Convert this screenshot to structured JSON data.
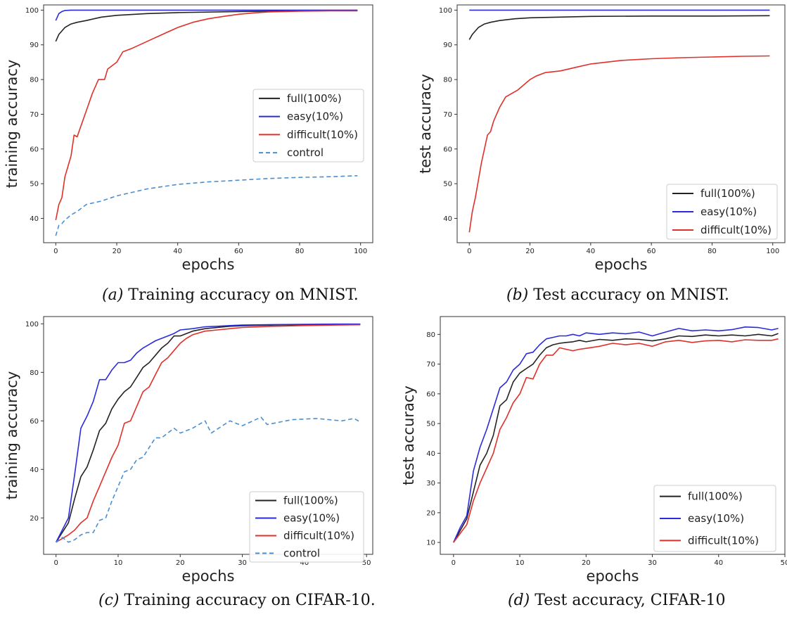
{
  "figure": {
    "subplots": [
      {
        "caption_letter": "(a)",
        "caption_text": "Training accuracy on MNIST."
      },
      {
        "caption_letter": "(b)",
        "caption_text": "Test accuracy on MNIST."
      },
      {
        "caption_letter": "(c)",
        "caption_text": "Training accuracy on CIFAR-10."
      },
      {
        "caption_letter": "(d)",
        "caption_text": "Test accuracy, CIFAR-10"
      }
    ]
  },
  "chart_data": [
    {
      "type": "line",
      "xlabel": "epochs",
      "ylabel": "training accuracy",
      "xlim": [
        -4,
        104
      ],
      "ylim": [
        33,
        101.5
      ],
      "xticks": [
        0,
        20,
        40,
        60,
        80,
        100
      ],
      "yticks": [
        40,
        50,
        60,
        70,
        80,
        90,
        100
      ],
      "grid": false,
      "legend_position": "center-right",
      "series": [
        {
          "name": "full(100%)",
          "color": "#222222",
          "dash": "solid",
          "x": [
            0,
            1,
            2,
            3,
            5,
            7,
            10,
            15,
            20,
            30,
            40,
            60,
            80,
            99
          ],
          "y": [
            91,
            93,
            94,
            95,
            96,
            96.5,
            97,
            98,
            98.5,
            99,
            99.3,
            99.6,
            99.8,
            99.9
          ]
        },
        {
          "name": "easy(10%)",
          "color": "#2b2bdb",
          "dash": "solid",
          "x": [
            0,
            1,
            2,
            3,
            5,
            10,
            99
          ],
          "y": [
            97,
            99,
            99.6,
            99.9,
            100,
            100,
            100
          ]
        },
        {
          "name": "difficult(10%)",
          "color": "#e0302a",
          "dash": "solid",
          "x": [
            0,
            1,
            2,
            3,
            4,
            5,
            6,
            7,
            8,
            10,
            12,
            14,
            16,
            17,
            20,
            22,
            25,
            30,
            35,
            40,
            45,
            50,
            55,
            60,
            65,
            70,
            80,
            90,
            99
          ],
          "y": [
            39.5,
            44,
            46,
            52,
            55,
            58,
            64,
            63.5,
            66,
            71,
            76,
            80,
            80,
            83,
            85,
            88,
            89,
            91,
            93,
            95,
            96.5,
            97.5,
            98.2,
            98.8,
            99.2,
            99.5,
            99.7,
            99.8,
            99.8
          ]
        },
        {
          "name": "control",
          "color": "#4b8fd0",
          "dash": "dashed",
          "x": [
            0,
            1,
            2,
            3,
            5,
            7,
            10,
            15,
            20,
            25,
            30,
            40,
            50,
            60,
            70,
            80,
            90,
            99
          ],
          "y": [
            35,
            38,
            38.5,
            39.5,
            41,
            42,
            44,
            45,
            46.5,
            47.5,
            48.5,
            49.8,
            50.5,
            51,
            51.5,
            51.8,
            52,
            52.3
          ]
        }
      ]
    },
    {
      "type": "line",
      "xlabel": "epochs",
      "ylabel": "test accuracy",
      "xlim": [
        -4,
        104
      ],
      "ylim": [
        33,
        101.5
      ],
      "xticks": [
        0,
        20,
        40,
        60,
        80,
        100
      ],
      "yticks": [
        40,
        50,
        60,
        70,
        80,
        90,
        100
      ],
      "grid": false,
      "legend_position": "bottom-right",
      "series": [
        {
          "name": "full(100%)",
          "color": "#222222",
          "dash": "solid",
          "x": [
            0,
            1,
            2,
            3,
            5,
            7,
            10,
            15,
            20,
            30,
            40,
            60,
            80,
            99
          ],
          "y": [
            91.5,
            93,
            94,
            95,
            96,
            96.5,
            97,
            97.5,
            97.8,
            98,
            98.2,
            98.3,
            98.3,
            98.4
          ]
        },
        {
          "name": "easy(10%)",
          "color": "#2b2bdb",
          "dash": "solid",
          "x": [
            0,
            99
          ],
          "y": [
            100,
            100
          ]
        },
        {
          "name": "difficult(10%)",
          "color": "#e0302a",
          "dash": "solid",
          "x": [
            0,
            1,
            2,
            3,
            4,
            5,
            6,
            7,
            8,
            10,
            12,
            14,
            16,
            18,
            20,
            22,
            25,
            30,
            35,
            40,
            45,
            50,
            60,
            70,
            80,
            90,
            99
          ],
          "y": [
            36,
            42,
            46,
            51,
            56,
            60,
            64,
            65,
            68,
            72,
            75,
            76,
            77,
            78.5,
            80,
            81,
            82,
            82.5,
            83.5,
            84.5,
            85,
            85.5,
            86,
            86.3,
            86.5,
            86.7,
            86.8
          ]
        }
      ]
    },
    {
      "type": "line",
      "xlabel": "epochs",
      "ylabel": "training accuracy",
      "xlim": [
        -2,
        51
      ],
      "ylim": [
        5,
        103
      ],
      "xticks": [
        0,
        10,
        20,
        30,
        40,
        50
      ],
      "yticks": [
        20,
        40,
        60,
        80,
        100
      ],
      "grid": false,
      "legend_position": "bottom-right",
      "series": [
        {
          "name": "full(100%)",
          "color": "#222222",
          "dash": "solid",
          "x": [
            0,
            2,
            3,
            4,
            5,
            6,
            7,
            8,
            9,
            10,
            11,
            12,
            13,
            14,
            15,
            16,
            17,
            18,
            19,
            20,
            22,
            24,
            26,
            28,
            30,
            35,
            40,
            45,
            49
          ],
          "y": [
            10,
            18,
            28,
            37,
            41,
            48,
            56,
            59,
            65,
            69,
            72,
            74,
            78,
            82,
            84,
            87,
            90,
            92,
            95,
            95,
            97,
            98,
            98.5,
            99,
            99.2,
            99.5,
            99.7,
            99.8,
            99.8
          ]
        },
        {
          "name": "easy(10%)",
          "color": "#2b2bdb",
          "dash": "solid",
          "x": [
            0,
            1,
            2,
            3,
            4,
            5,
            6,
            7,
            8,
            9,
            10,
            11,
            12,
            13,
            14,
            15,
            16,
            17,
            18,
            19,
            20,
            22,
            24,
            26,
            28,
            30,
            35,
            40,
            45,
            49
          ],
          "y": [
            10,
            15,
            20,
            38,
            57,
            62,
            68,
            77,
            77,
            81,
            84,
            84,
            85,
            88,
            90,
            91.5,
            93,
            94,
            95,
            96,
            97.5,
            98,
            98.8,
            99,
            99.3,
            99.5,
            99.7,
            99.8,
            99.9,
            99.9
          ]
        },
        {
          "name": "difficult(10%)",
          "color": "#e0302a",
          "dash": "solid",
          "x": [
            0,
            2,
            3,
            4,
            5,
            6,
            7,
            8,
            9,
            10,
            11,
            12,
            13,
            14,
            15,
            16,
            17,
            18,
            19,
            20,
            21,
            22,
            24,
            26,
            28,
            30,
            35,
            40,
            45,
            49
          ],
          "y": [
            10,
            13,
            15,
            18,
            20,
            27,
            33,
            39,
            45,
            50,
            59,
            60,
            66,
            72,
            74,
            79,
            84,
            86,
            89,
            92,
            94,
            95.5,
            97,
            97.5,
            98,
            98.5,
            99,
            99.3,
            99.5,
            99.6
          ]
        },
        {
          "name": "control",
          "color": "#4b8fd0",
          "dash": "dashed",
          "x": [
            0,
            1,
            2,
            3,
            4,
            5,
            6,
            7,
            8,
            9,
            10,
            11,
            12,
            13,
            14,
            15,
            16,
            17,
            18,
            19,
            20,
            22,
            24,
            25,
            28,
            30,
            33,
            34,
            38,
            42,
            46,
            48,
            49
          ],
          "y": [
            10,
            12,
            10,
            11,
            13,
            14,
            14,
            19,
            20,
            27,
            33,
            39,
            40,
            44,
            45,
            49,
            53,
            53,
            55,
            57,
            55,
            57,
            60,
            55,
            60,
            58,
            61.5,
            58.5,
            60.5,
            61,
            60,
            61,
            59.5
          ]
        }
      ]
    },
    {
      "type": "line",
      "xlabel": "epochs",
      "ylabel": "test accuracy",
      "xlim": [
        -2,
        50
      ],
      "ylim": [
        6,
        86
      ],
      "xticks": [
        0,
        10,
        20,
        30,
        40,
        50
      ],
      "yticks": [
        10,
        20,
        30,
        40,
        50,
        60,
        70,
        80
      ],
      "grid": false,
      "legend_position": "bottom-right",
      "series": [
        {
          "name": "full(100%)",
          "color": "#222222",
          "dash": "solid",
          "x": [
            0,
            1,
            2,
            3,
            4,
            5,
            6,
            7,
            8,
            9,
            10,
            11,
            12,
            13,
            14,
            15,
            16,
            17,
            18,
            19,
            20,
            22,
            24,
            26,
            28,
            30,
            32,
            34,
            36,
            38,
            40,
            42,
            44,
            46,
            48,
            49
          ],
          "y": [
            10,
            14,
            18,
            27,
            36,
            40,
            46,
            56,
            58,
            64,
            67,
            68.5,
            70,
            73,
            75.5,
            76.5,
            77,
            77.3,
            77.5,
            78,
            77.5,
            78.3,
            78,
            78.5,
            78.3,
            77.8,
            78.5,
            79.5,
            79.3,
            79.8,
            79.5,
            79.8,
            79.5,
            80,
            79.5,
            80.3
          ]
        },
        {
          "name": "easy(10%)",
          "color": "#2b2bdb",
          "dash": "solid",
          "x": [
            0,
            1,
            2,
            3,
            4,
            5,
            6,
            7,
            8,
            9,
            10,
            11,
            12,
            13,
            14,
            15,
            16,
            17,
            18,
            19,
            20,
            22,
            24,
            26,
            28,
            30,
            32,
            34,
            36,
            38,
            40,
            42,
            44,
            46,
            48,
            49
          ],
          "y": [
            10,
            15,
            19,
            34,
            42,
            48,
            55,
            62,
            64,
            68,
            70,
            73.5,
            74,
            76.5,
            78.5,
            79,
            79.5,
            79.5,
            80,
            79.5,
            80.5,
            80,
            80.5,
            80.2,
            80.8,
            79.5,
            80.8,
            82,
            81.2,
            81.5,
            81.2,
            81.6,
            82.5,
            82.3,
            81.5,
            82
          ]
        },
        {
          "name": "difficult(10%)",
          "color": "#e0302a",
          "dash": "solid",
          "x": [
            0,
            1,
            2,
            3,
            4,
            5,
            6,
            7,
            8,
            9,
            10,
            11,
            12,
            13,
            14,
            15,
            16,
            17,
            18,
            19,
            20,
            22,
            24,
            26,
            28,
            30,
            32,
            34,
            36,
            38,
            40,
            42,
            44,
            46,
            48,
            49
          ],
          "y": [
            10,
            13,
            16,
            24,
            30,
            35,
            40,
            48,
            52,
            57,
            60,
            65.5,
            65,
            70,
            73,
            73,
            75.5,
            75,
            74.5,
            75,
            75.3,
            76,
            77,
            76.5,
            77,
            76,
            77.5,
            78,
            77.3,
            77.8,
            78,
            77.5,
            78.2,
            78,
            78,
            78.5
          ]
        }
      ]
    }
  ]
}
